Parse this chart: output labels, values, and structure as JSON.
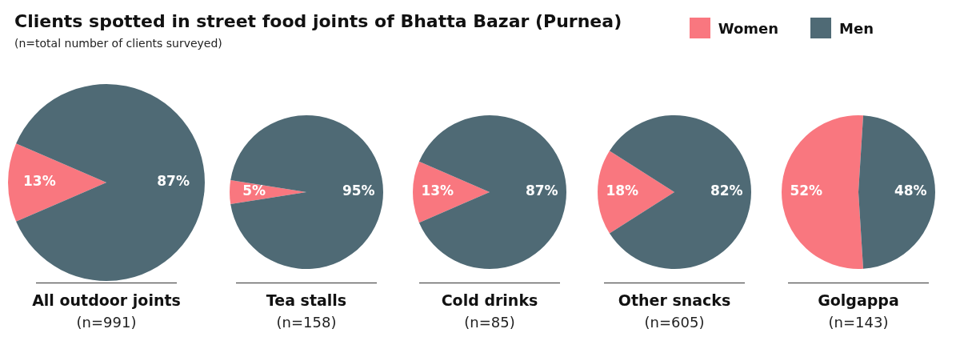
{
  "chart_data": [
    {
      "type": "pie",
      "title": "Clients spotted in street food joints of Bhatta Bazar (Purnea)",
      "subtitle": "(n=total number of clients surveyed)",
      "legend": "top right",
      "xlabel": "All outdoor joints",
      "annotations": [
        "(n=991)"
      ],
      "categories": [
        "Women",
        "Men"
      ],
      "values": [
        13,
        87
      ],
      "colors": [
        "#f9777f",
        "#4f6a75"
      ],
      "data_labels": true,
      "value_labels": [
        "13%",
        "87%"
      ]
    },
    {
      "type": "pie",
      "xlabel": "Tea stalls",
      "annotations": [
        "(n=158)"
      ],
      "categories": [
        null,
        null
      ],
      "values": [
        5,
        95
      ],
      "colors": [
        "#f9777f",
        "#4f6a75"
      ],
      "data_labels": true,
      "value_labels": [
        "5%",
        "95%"
      ]
    },
    {
      "type": "pie",
      "xlabel": "Cold drinks",
      "annotations": [
        "(n=85)"
      ],
      "categories": [
        null,
        null
      ],
      "values": [
        13,
        87
      ],
      "colors": [
        "#f9777f",
        "#4f6a75"
      ],
      "data_labels": true,
      "value_labels": [
        "13%",
        "87%"
      ]
    },
    {
      "type": "pie",
      "xlabel": "Other snacks",
      "annotations": [
        "(n=605)"
      ],
      "categories": [
        null,
        null
      ],
      "values": [
        18,
        82
      ],
      "colors": [
        "#f9777f",
        "#4f6a75"
      ],
      "data_labels": true,
      "value_labels": [
        "18%",
        "82%"
      ]
    },
    {
      "type": "pie",
      "xlabel": "Golgappa",
      "annotations": [
        "(n=143)"
      ],
      "categories": [
        null,
        null
      ],
      "values": [
        52,
        48
      ],
      "colors": [
        "#f9777f",
        "#4f6a75"
      ],
      "data_labels": true,
      "value_labels": [
        "52%",
        "48%"
      ]
    }
  ]
}
